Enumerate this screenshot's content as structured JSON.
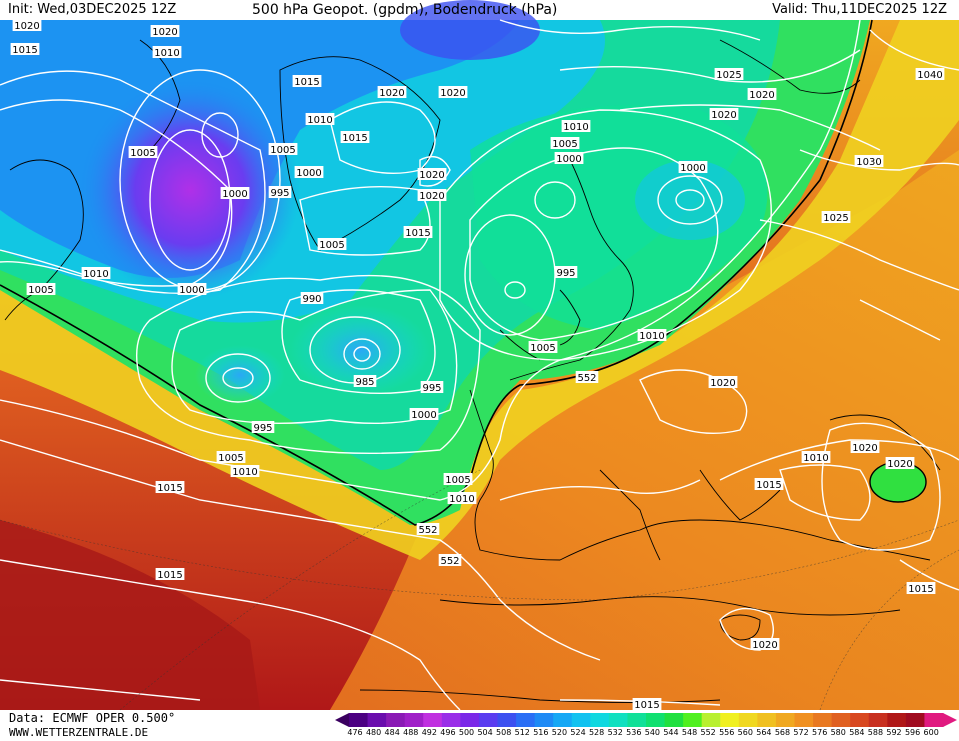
{
  "header": {
    "init": "Init: Wed,03DEC2025 12Z",
    "title": "500 hPa Geopot. (gpdm), Bodendruck (hPa)",
    "valid": "Valid: Thu,11DEC2025 12Z"
  },
  "footer": {
    "data_source": "Data: ECMWF OPER 0.500°",
    "website": "WWW.WETTERZENTRALE.DE"
  },
  "colorbar": {
    "ticks": [
      "476",
      "480",
      "484",
      "488",
      "492",
      "496",
      "500",
      "504",
      "508",
      "512",
      "516",
      "520",
      "524",
      "528",
      "532",
      "536",
      "540",
      "544",
      "548",
      "552",
      "556",
      "560",
      "564",
      "568",
      "572",
      "576",
      "580",
      "584",
      "588",
      "592",
      "596",
      "600"
    ],
    "colors": [
      "#4b0082",
      "#6a0dad",
      "#8a1ab5",
      "#a020c8",
      "#c030e0",
      "#9a2ee8",
      "#7b28e8",
      "#5a3cf0",
      "#3c50f0",
      "#2a6ef5",
      "#1e8af5",
      "#16a8f5",
      "#12c2f0",
      "#10d8e0",
      "#10e0c0",
      "#10e098",
      "#10e070",
      "#20e040",
      "#50f020",
      "#b8f030",
      "#f0f020",
      "#f0d820",
      "#f0c020",
      "#f0a820",
      "#f09020",
      "#e87820",
      "#e06020",
      "#d84820",
      "#c83020",
      "#b01818",
      "#a00c20",
      "#e01a80"
    ]
  },
  "isobar_labels": [
    "1020",
    "1015",
    "1010",
    "1005",
    "1000",
    "995",
    "990",
    "985",
    "1025",
    "1030",
    "1040",
    "552"
  ],
  "map_labels": [
    "1020",
    "1020",
    "1015",
    "1010",
    "1015",
    "1020",
    "1020",
    "1015",
    "1005",
    "1005",
    "1000",
    "1000",
    "995",
    "1010",
    "1005",
    "1020",
    "1020",
    "1015",
    "1025",
    "1020",
    "1040",
    "1010",
    "1005",
    "1000",
    "1000",
    "1030",
    "1025",
    "995",
    "1010",
    "1005",
    "990",
    "985",
    "995",
    "1000",
    "1010",
    "1000",
    "1005",
    "995",
    "1005",
    "1010",
    "1015",
    "1005",
    "1010",
    "552",
    "552",
    "1020",
    "1020",
    "1010",
    "1015",
    "1020",
    "552",
    "1015",
    "1020",
    "1015",
    "1020",
    "1015"
  ]
}
